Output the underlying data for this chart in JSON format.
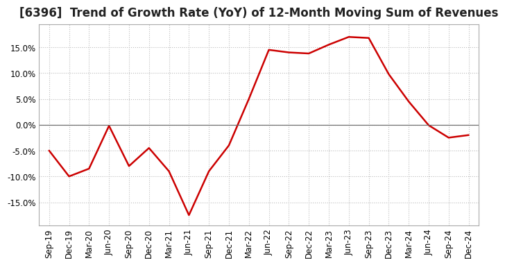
{
  "title": "[6396]  Trend of Growth Rate (YoY) of 12-Month Moving Sum of Revenues",
  "x_labels": [
    "Sep-19",
    "Dec-19",
    "Mar-20",
    "Jun-20",
    "Sep-20",
    "Dec-20",
    "Mar-21",
    "Jun-21",
    "Sep-21",
    "Dec-21",
    "Mar-22",
    "Jun-22",
    "Sep-22",
    "Dec-22",
    "Mar-23",
    "Jun-23",
    "Sep-23",
    "Dec-23",
    "Mar-24",
    "Jun-24",
    "Sep-24",
    "Dec-24"
  ],
  "y_values": [
    -5.0,
    -10.0,
    -8.5,
    -0.2,
    -8.0,
    -4.5,
    -9.0,
    -17.5,
    -9.0,
    -4.0,
    5.0,
    14.5,
    14.0,
    13.8,
    15.5,
    17.0,
    16.8,
    9.8,
    4.5,
    -0.1,
    -2.5,
    -2.0
  ],
  "line_color": "#cc0000",
  "line_width": 1.8,
  "ylim": [
    -19.5,
    19.5
  ],
  "yticks": [
    -15.0,
    -10.0,
    -5.0,
    0.0,
    5.0,
    10.0,
    15.0
  ],
  "background_color": "#ffffff",
  "grid_color": "#bbbbbb",
  "title_fontsize": 12,
  "tick_fontsize": 8.5
}
